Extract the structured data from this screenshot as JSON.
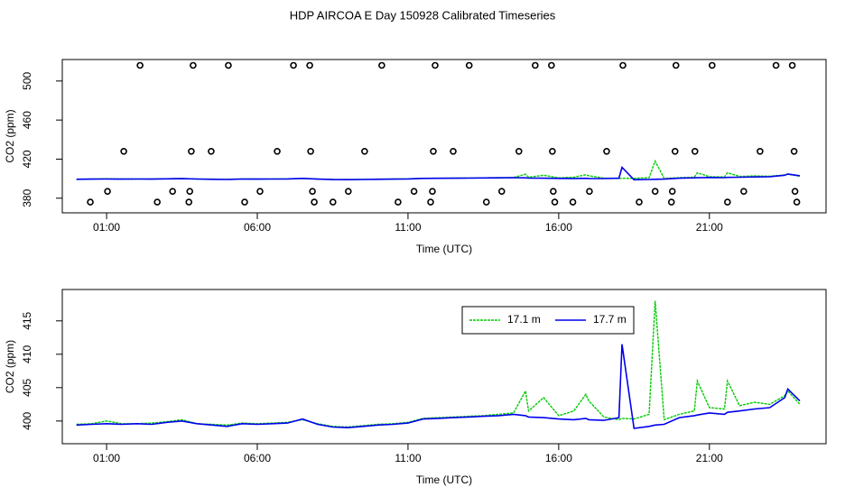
{
  "chart_data": [
    {
      "type": "line",
      "title": "HDP AIRCOA E  Day 150928  Calibrated Timeseries",
      "xlabel": "Time (UTC)",
      "ylabel": "CO2 (ppm)",
      "xlim": [
        -0.47,
        24.87
      ],
      "xticks": [
        {
          "value": 1,
          "label": "01:00"
        },
        {
          "value": 6,
          "label": "06:00"
        },
        {
          "value": 11,
          "label": "11:00"
        },
        {
          "value": 16,
          "label": "16:00"
        },
        {
          "value": 21,
          "label": "21:00"
        }
      ],
      "ylim": [
        365,
        522
      ],
      "yticks": [
        380,
        420,
        460,
        500
      ],
      "x": [
        0,
        0.5,
        1,
        1.5,
        2,
        2.5,
        3,
        3.5,
        4,
        4.5,
        5,
        5.5,
        6,
        6.5,
        7,
        7.5,
        8,
        8.5,
        9,
        9.5,
        10,
        10.5,
        11,
        11.5,
        12,
        12.5,
        13,
        13.5,
        14,
        14.5,
        14.9,
        15,
        15.5,
        16,
        16.5,
        16.9,
        17,
        17.5,
        18,
        18.1,
        18.5,
        19,
        19.2,
        19.5,
        20,
        20.5,
        20.6,
        21,
        21.5,
        21.6,
        22,
        22.5,
        23,
        23.5,
        23.6,
        24
      ],
      "series": [
        {
          "name": "17.1 m",
          "color": "#00cc00",
          "values": [
            399.5,
            399.6,
            400,
            399.6,
            399.6,
            399.7,
            399.9,
            400.2,
            399.6,
            399.5,
            399.4,
            399.7,
            399.6,
            399.7,
            399.8,
            400.2,
            399.6,
            399.2,
            399.1,
            399.3,
            399.5,
            399.6,
            399.8,
            400.4,
            400.5,
            400.6,
            400.7,
            400.8,
            401,
            401.2,
            404.5,
            401.5,
            403.5,
            400.8,
            401.5,
            404,
            403,
            400.6,
            400.2,
            400.4,
            400.3,
            401,
            418,
            400.2,
            401,
            401.5,
            406,
            402,
            401.8,
            406,
            402.3,
            402.8,
            402.5,
            403.8,
            404.5,
            402.5
          ]
        },
        {
          "name": "17.7 m",
          "color": "#0000ee",
          "values": [
            399.4,
            399.5,
            399.6,
            399.5,
            399.6,
            399.5,
            399.8,
            400,
            399.6,
            399.4,
            399.2,
            399.6,
            399.5,
            399.6,
            399.7,
            400.3,
            399.5,
            399.1,
            399,
            399.2,
            399.4,
            399.5,
            399.7,
            400.3,
            400.4,
            400.5,
            400.6,
            400.7,
            400.8,
            401,
            400.8,
            400.6,
            400.5,
            400.3,
            400.2,
            400.4,
            400.2,
            400.1,
            400.5,
            411.5,
            398.9,
            399.2,
            399.4,
            399.5,
            400.5,
            400.8,
            400.9,
            401.2,
            401,
            401.3,
            401.5,
            401.8,
            402,
            403.5,
            404.8,
            403
          ]
        }
      ],
      "markers": {
        "color": "#000000",
        "x": [
          2.11,
          3.87,
          5.04,
          7.2,
          7.74,
          10.13,
          11.9,
          13.03,
          15.22,
          15.76,
          18.13,
          19.89,
          21.09,
          23.21,
          23.75,
          1.57,
          3.81,
          4.47,
          6.66,
          7.77,
          9.56,
          11.84,
          12.5,
          14.68,
          15.79,
          17.59,
          19.86,
          20.52,
          22.68,
          23.81,
          1.03,
          3.19,
          3.76,
          6.09,
          7.83,
          9.02,
          11.2,
          11.81,
          14.11,
          15.82,
          17.02,
          19.2,
          19.77,
          22.14,
          23.84,
          0.46,
          2.68,
          3.73,
          5.58,
          7.89,
          8.51,
          10.67,
          11.75,
          13.6,
          15.87,
          16.47,
          18.67,
          19.74,
          21.6,
          23.9
        ],
        "values": [
          516,
          516,
          516,
          516,
          516,
          516,
          516,
          516,
          516,
          516,
          516,
          516,
          516,
          516,
          516,
          428,
          428,
          428,
          428,
          428,
          428,
          428,
          428,
          428,
          428,
          428,
          428,
          428,
          428,
          428,
          387,
          387,
          387,
          387,
          387,
          387,
          387,
          387,
          387,
          387,
          387,
          387,
          387,
          387,
          387,
          376,
          376,
          376,
          376,
          376,
          376,
          376,
          376,
          376,
          376,
          376,
          376,
          376,
          376,
          376
        ]
      }
    },
    {
      "type": "line",
      "xlabel": "Time (UTC)",
      "ylabel": "CO2 (ppm)",
      "legend": "top",
      "xlim": [
        -0.47,
        24.87
      ],
      "xticks": [
        {
          "value": 1,
          "label": "01:00"
        },
        {
          "value": 6,
          "label": "06:00"
        },
        {
          "value": 11,
          "label": "11:00"
        },
        {
          "value": 16,
          "label": "16:00"
        },
        {
          "value": 21,
          "label": "21:00"
        }
      ],
      "ylim": [
        396.6,
        419.7
      ],
      "yticks": [
        400,
        405,
        410,
        415
      ],
      "x": [
        0,
        0.5,
        1,
        1.5,
        2,
        2.5,
        3,
        3.5,
        4,
        4.5,
        5,
        5.5,
        6,
        6.5,
        7,
        7.5,
        8,
        8.5,
        9,
        9.5,
        10,
        10.5,
        11,
        11.5,
        12,
        12.5,
        13,
        13.5,
        14,
        14.5,
        14.9,
        15,
        15.5,
        16,
        16.5,
        16.9,
        17,
        17.5,
        18,
        18.1,
        18.5,
        19,
        19.2,
        19.5,
        20,
        20.5,
        20.6,
        21,
        21.5,
        21.6,
        22,
        22.5,
        23,
        23.5,
        23.6,
        24
      ],
      "series": [
        {
          "name": "17.1 m",
          "color": "#00cc00",
          "values": [
            399.5,
            399.6,
            400,
            399.6,
            399.6,
            399.7,
            399.9,
            400.2,
            399.6,
            399.5,
            399.4,
            399.7,
            399.6,
            399.7,
            399.8,
            400.2,
            399.6,
            399.2,
            399.1,
            399.3,
            399.5,
            399.6,
            399.8,
            400.4,
            400.5,
            400.6,
            400.7,
            400.8,
            401,
            401.2,
            404.5,
            401.5,
            403.5,
            400.8,
            401.5,
            404,
            403,
            400.6,
            400.2,
            400.4,
            400.3,
            401,
            418,
            400.2,
            401,
            401.5,
            406,
            402,
            401.8,
            406,
            402.3,
            402.8,
            402.5,
            403.8,
            404.5,
            402.5
          ]
        },
        {
          "name": "17.7 m",
          "color": "#0000ee",
          "values": [
            399.4,
            399.5,
            399.6,
            399.5,
            399.6,
            399.5,
            399.8,
            400,
            399.6,
            399.4,
            399.2,
            399.6,
            399.5,
            399.6,
            399.7,
            400.3,
            399.5,
            399.1,
            399,
            399.2,
            399.4,
            399.5,
            399.7,
            400.3,
            400.4,
            400.5,
            400.6,
            400.7,
            400.8,
            401,
            400.8,
            400.6,
            400.5,
            400.3,
            400.2,
            400.4,
            400.2,
            400.1,
            400.5,
            411.5,
            398.9,
            399.2,
            399.4,
            399.5,
            400.5,
            400.8,
            400.9,
            401.2,
            401,
            401.3,
            401.5,
            401.8,
            402,
            403.5,
            404.8,
            403
          ]
        }
      ]
    }
  ]
}
